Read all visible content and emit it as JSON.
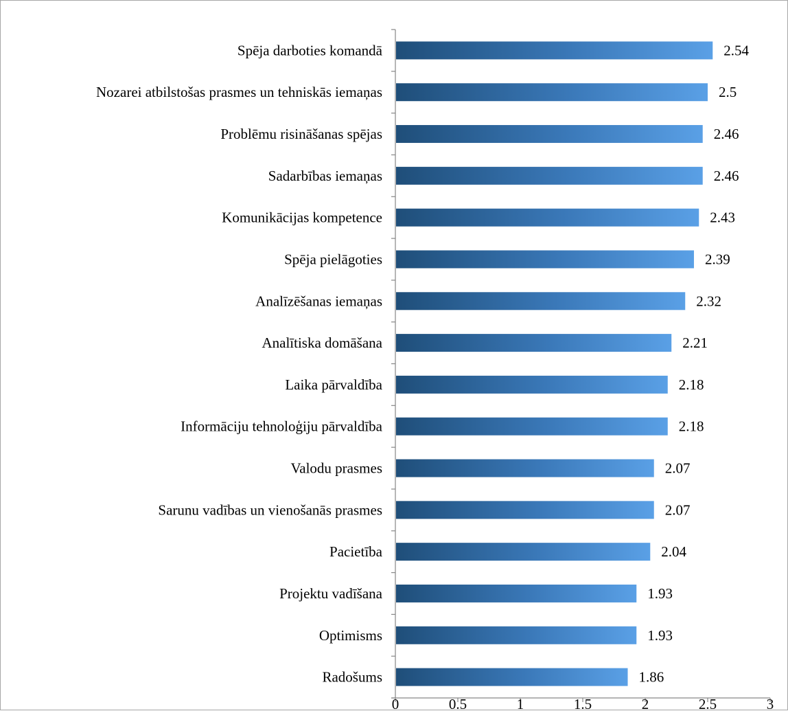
{
  "chart_data": {
    "type": "bar",
    "orientation": "horizontal",
    "title": "",
    "xlabel": "",
    "ylabel": "",
    "xlim": [
      0,
      3
    ],
    "x_ticks": [
      0,
      0.5,
      1,
      1.5,
      2,
      2.5,
      3
    ],
    "x_tick_labels": [
      "0",
      "0.5",
      "1",
      "1.5",
      "2",
      "2.5",
      "3"
    ],
    "grid": false,
    "legend": "none",
    "categories": [
      "Spēja darboties komandā",
      "Nozarei atbilstošas prasmes un tehniskās iemaņas",
      "Problēmu risināšanas spējas",
      "Sadarbības iemaņas",
      "Komunikācijas kompetence",
      "Spēja pielāgoties",
      "Analīzēšanas iemaņas",
      "Analītiska domāšana",
      "Laika pārvaldība",
      "Informāciju tehnoloģiju pārvaldība",
      "Valodu prasmes",
      "Sarunu vadības un vienošanās prasmes",
      "Pacietība",
      "Projektu vadīšana",
      "Optimisms",
      "Radošums"
    ],
    "values": [
      2.54,
      2.5,
      2.46,
      2.46,
      2.43,
      2.39,
      2.32,
      2.21,
      2.18,
      2.18,
      2.07,
      2.07,
      2.04,
      1.93,
      1.93,
      1.86
    ],
    "value_labels": [
      "2.54",
      "2.5",
      "2.46",
      "2.46",
      "2.43",
      "2.39",
      "2.32",
      "2.21",
      "2.18",
      "2.18",
      "2.07",
      "2.07",
      "2.04",
      "1.93",
      "1.93",
      "1.86"
    ],
    "colors": {
      "bar_gradient_start": "#1f4e79",
      "bar_gradient_mid": "#3a78b8",
      "bar_gradient_end": "#5aa0e6",
      "axis": "#868686",
      "frame": "#a6a6a6"
    }
  }
}
